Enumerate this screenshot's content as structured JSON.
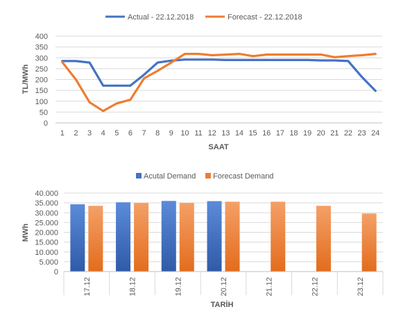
{
  "chart_data": [
    {
      "type": "line",
      "xlabel": "SAAT",
      "ylabel": "TL/MWh",
      "ylim": [
        0,
        400
      ],
      "yticks": [
        "0",
        "50",
        "100",
        "150",
        "200",
        "250",
        "300",
        "350",
        "400"
      ],
      "x": [
        "1",
        "2",
        "3",
        "4",
        "5",
        "6",
        "7",
        "8",
        "9",
        "10",
        "11",
        "12",
        "13",
        "14",
        "15",
        "16",
        "17",
        "18",
        "19",
        "20",
        "21",
        "22",
        "23",
        "24"
      ],
      "grid": true,
      "legend": "top",
      "series": [
        {
          "name": "Actual - 22.12.2018",
          "color": "#4472c4",
          "values": [
            285,
            285,
            278,
            172,
            172,
            172,
            222,
            278,
            287,
            292,
            292,
            292,
            290,
            290,
            290,
            290,
            290,
            290,
            290,
            288,
            288,
            285,
            212,
            148
          ]
        },
        {
          "name": "Forecast - 22.12.2018",
          "color": "#ed7d31",
          "values": [
            280,
            200,
            95,
            55,
            90,
            107,
            205,
            240,
            278,
            318,
            318,
            312,
            315,
            318,
            308,
            315,
            315,
            315,
            315,
            315,
            303,
            308,
            312,
            318
          ]
        }
      ]
    },
    {
      "type": "bar",
      "xlabel": "TARİH",
      "ylabel": "MWh",
      "ylim": [
        0,
        40000
      ],
      "yticks": [
        "0",
        "5.000",
        "10.000",
        "15.000",
        "20.000",
        "25.000",
        "30.000",
        "35.000",
        "40.000"
      ],
      "categories": [
        "17.12",
        "18.12",
        "19.12",
        "20.12",
        "21.12",
        "22.12",
        "23.12"
      ],
      "grid": true,
      "legend": "top",
      "series": [
        {
          "name": "Acutal Demand",
          "color": "#4472c4",
          "values": [
            34300,
            35300,
            36000,
            35900,
            null,
            null,
            null
          ]
        },
        {
          "name": "Forecast Demand",
          "color": "#ed7d31",
          "values": [
            33500,
            35000,
            35000,
            35600,
            35600,
            33500,
            29600
          ]
        }
      ]
    }
  ]
}
